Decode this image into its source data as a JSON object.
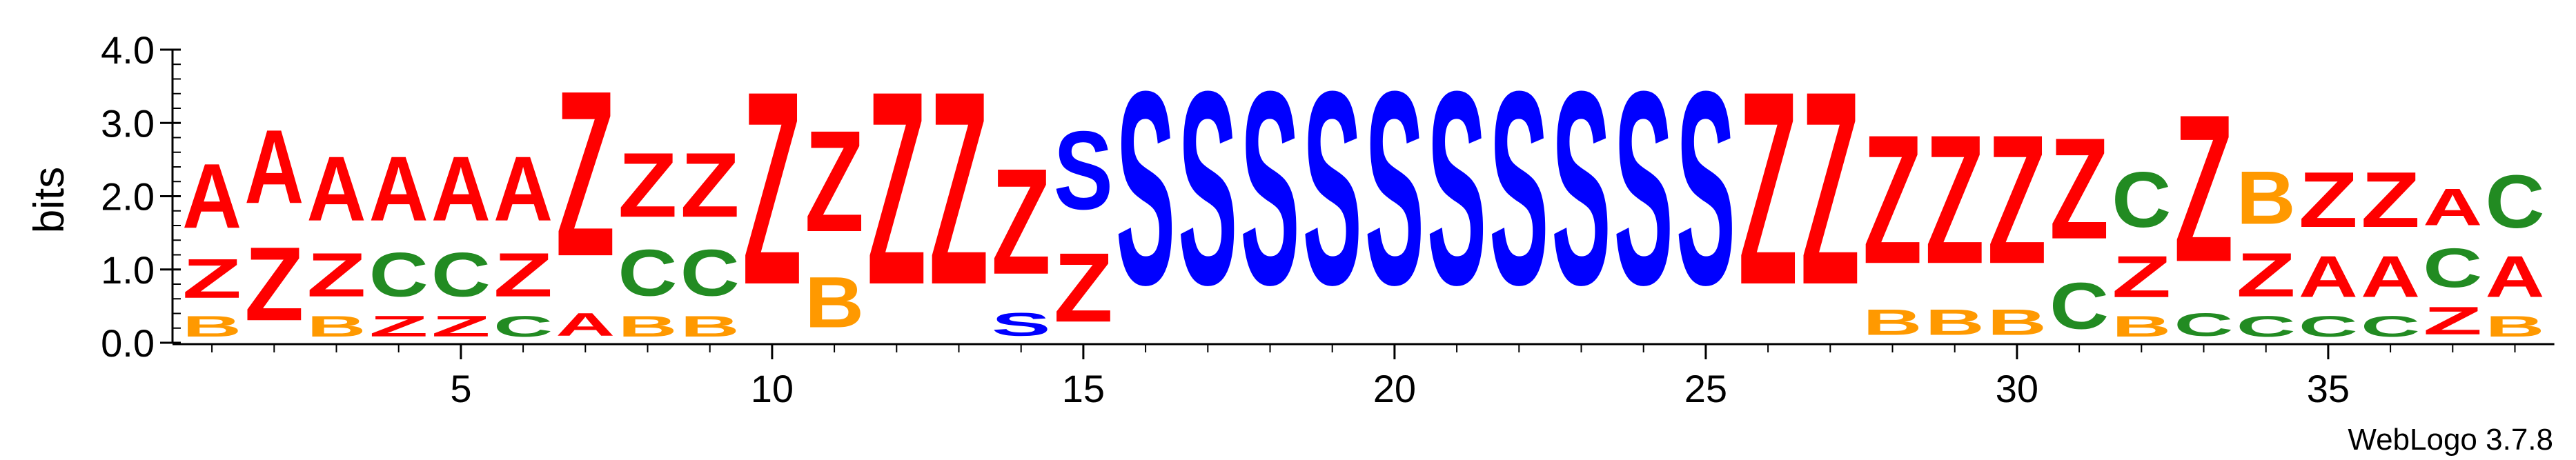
{
  "chart_data": {
    "type": "sequence-logo",
    "ylabel": "bits",
    "ylim": [
      0,
      4.0
    ],
    "y_ticks": [
      "0.0",
      "1.0",
      "2.0",
      "3.0",
      "4.0"
    ],
    "x_ticks": [
      5,
      10,
      15,
      20,
      25,
      30,
      35
    ],
    "footer": "WebLogo 3.7.8",
    "colors": {
      "A": "#ff0000",
      "Z": "#ff0000",
      "B": "#ff9900",
      "C": "#228b22",
      "S": "#0000ff"
    },
    "positions": [
      {
        "pos": 1,
        "stack": [
          {
            "letter": "B",
            "height": 0.45
          },
          {
            "letter": "Z",
            "height": 0.85
          },
          {
            "letter": "A",
            "height": 1.4
          }
        ]
      },
      {
        "pos": 2,
        "stack": [
          {
            "letter": "Z",
            "height": 1.6
          },
          {
            "letter": "A",
            "height": 1.6
          }
        ]
      },
      {
        "pos": 3,
        "stack": [
          {
            "letter": "B",
            "height": 0.45
          },
          {
            "letter": "Z",
            "height": 0.95
          },
          {
            "letter": "A",
            "height": 1.4
          }
        ]
      },
      {
        "pos": 4,
        "stack": [
          {
            "letter": "Z",
            "height": 0.45
          },
          {
            "letter": "C",
            "height": 0.95
          },
          {
            "letter": "A",
            "height": 1.4
          }
        ]
      },
      {
        "pos": 5,
        "stack": [
          {
            "letter": "Z",
            "height": 0.45
          },
          {
            "letter": "C",
            "height": 0.95
          },
          {
            "letter": "A",
            "height": 1.4
          }
        ]
      },
      {
        "pos": 6,
        "stack": [
          {
            "letter": "C",
            "height": 0.45
          },
          {
            "letter": "Z",
            "height": 0.95
          },
          {
            "letter": "A",
            "height": 1.4
          }
        ]
      },
      {
        "pos": 7,
        "stack": [
          {
            "letter": "A",
            "height": 0.5
          },
          {
            "letter": "Z",
            "height": 3.6
          }
        ]
      },
      {
        "pos": 8,
        "stack": [
          {
            "letter": "B",
            "height": 0.45
          },
          {
            "letter": "C",
            "height": 1.0
          },
          {
            "letter": "Z",
            "height": 1.4
          }
        ]
      },
      {
        "pos": 9,
        "stack": [
          {
            "letter": "B",
            "height": 0.45
          },
          {
            "letter": "C",
            "height": 1.0
          },
          {
            "letter": "Z",
            "height": 1.4
          }
        ]
      },
      {
        "pos": 10,
        "stack": [
          {
            "letter": "Z",
            "height": 4.2
          }
        ]
      },
      {
        "pos": 11,
        "stack": [
          {
            "letter": "B",
            "height": 1.1
          },
          {
            "letter": "Z",
            "height": 2.2
          }
        ]
      },
      {
        "pos": 12,
        "stack": [
          {
            "letter": "Z",
            "height": 4.2
          }
        ]
      },
      {
        "pos": 13,
        "stack": [
          {
            "letter": "Z",
            "height": 4.2
          }
        ]
      },
      {
        "pos": 14,
        "stack": [
          {
            "letter": "S",
            "height": 0.5
          },
          {
            "letter": "Z",
            "height": 2.3
          }
        ]
      },
      {
        "pos": 15,
        "stack": [
          {
            "letter": "Z",
            "height": 1.5
          },
          {
            "letter": "S",
            "height": 1.7
          }
        ]
      },
      {
        "pos": 16,
        "stack": [
          {
            "letter": "S",
            "height": 4.2
          }
        ]
      },
      {
        "pos": 17,
        "stack": [
          {
            "letter": "S",
            "height": 4.2
          }
        ]
      },
      {
        "pos": 18,
        "stack": [
          {
            "letter": "S",
            "height": 4.2
          }
        ]
      },
      {
        "pos": 19,
        "stack": [
          {
            "letter": "S",
            "height": 4.2
          }
        ]
      },
      {
        "pos": 20,
        "stack": [
          {
            "letter": "S",
            "height": 4.2
          }
        ]
      },
      {
        "pos": 21,
        "stack": [
          {
            "letter": "S",
            "height": 4.2
          }
        ]
      },
      {
        "pos": 22,
        "stack": [
          {
            "letter": "S",
            "height": 4.2
          }
        ]
      },
      {
        "pos": 23,
        "stack": [
          {
            "letter": "S",
            "height": 4.2
          }
        ]
      },
      {
        "pos": 24,
        "stack": [
          {
            "letter": "S",
            "height": 4.2
          }
        ]
      },
      {
        "pos": 25,
        "stack": [
          {
            "letter": "S",
            "height": 4.2
          }
        ]
      },
      {
        "pos": 26,
        "stack": [
          {
            "letter": "Z",
            "height": 4.2
          }
        ]
      },
      {
        "pos": 27,
        "stack": [
          {
            "letter": "Z",
            "height": 4.2
          }
        ]
      },
      {
        "pos": 28,
        "stack": [
          {
            "letter": "B",
            "height": 0.55
          },
          {
            "letter": "Z",
            "height": 2.8
          }
        ]
      },
      {
        "pos": 29,
        "stack": [
          {
            "letter": "B",
            "height": 0.55
          },
          {
            "letter": "Z",
            "height": 2.8
          }
        ]
      },
      {
        "pos": 30,
        "stack": [
          {
            "letter": "B",
            "height": 0.55
          },
          {
            "letter": "Z",
            "height": 2.8
          }
        ]
      },
      {
        "pos": 31,
        "stack": [
          {
            "letter": "C",
            "height": 1.0
          },
          {
            "letter": "Z",
            "height": 2.2
          }
        ]
      },
      {
        "pos": 32,
        "stack": [
          {
            "letter": "B",
            "height": 0.45
          },
          {
            "letter": "Z",
            "height": 0.9
          },
          {
            "letter": "C",
            "height": 1.2
          }
        ]
      },
      {
        "pos": 33,
        "stack": [
          {
            "letter": "C",
            "height": 0.5
          },
          {
            "letter": "Z",
            "height": 3.2
          }
        ]
      },
      {
        "pos": 34,
        "stack": [
          {
            "letter": "C",
            "height": 0.45
          },
          {
            "letter": "Z",
            "height": 0.95
          },
          {
            "letter": "B",
            "height": 1.15
          }
        ]
      },
      {
        "pos": 35,
        "stack": [
          {
            "letter": "C",
            "height": 0.45
          },
          {
            "letter": "A",
            "height": 0.9
          },
          {
            "letter": "Z",
            "height": 1.2
          }
        ]
      },
      {
        "pos": 36,
        "stack": [
          {
            "letter": "C",
            "height": 0.45
          },
          {
            "letter": "A",
            "height": 0.9
          },
          {
            "letter": "Z",
            "height": 1.2
          }
        ]
      },
      {
        "pos": 37,
        "stack": [
          {
            "letter": "Z",
            "height": 0.6
          },
          {
            "letter": "C",
            "height": 0.85
          },
          {
            "letter": "A",
            "height": 0.8
          }
        ]
      },
      {
        "pos": 38,
        "stack": [
          {
            "letter": "B",
            "height": 0.45
          },
          {
            "letter": "A",
            "height": 0.9
          },
          {
            "letter": "C",
            "height": 1.15
          }
        ]
      }
    ]
  }
}
